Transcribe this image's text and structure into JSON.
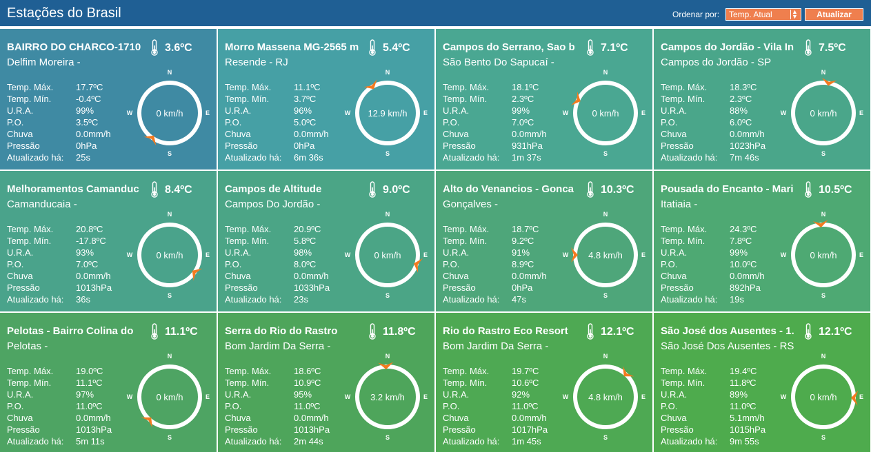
{
  "header": {
    "title": "Estações do Brasil",
    "sort_label": "Ordenar por:",
    "sort_value": "Temp. Atual",
    "refresh_label": "Atualizar"
  },
  "labels": {
    "tmax": "Temp. Máx.",
    "tmin": "Temp. Mín.",
    "ura": "U.R.A.",
    "po": "P.O.",
    "rain": "Chuva",
    "pressure": "Pressão",
    "updated": "Atualizado há:",
    "n": "N",
    "s": "S",
    "e": "E",
    "w": "W"
  },
  "colors": [
    "#3f8aa3",
    "#46a0a5",
    "#4aa792",
    "#4aa68a",
    "#4aa38b",
    "#4ba586",
    "#4ea67a",
    "#4ea973",
    "#4ea463",
    "#4ea55b",
    "#4ea953",
    "#4eab4d"
  ],
  "stations": [
    {
      "name": "BAIRRO DO CHARCO-1710",
      "temp": "3.6ºC",
      "city": "Delfim Moreira -",
      "tmax": "17.7ºC",
      "tmin": "-0.4ºC",
      "ura": "99%",
      "po": "3.5ºC",
      "rain": "0.0mm/h",
      "pressure": "0hPa",
      "updated": "25s",
      "wind": "0 km/h",
      "dir": 215
    },
    {
      "name": "Morro Massena MG-2565 m",
      "temp": "5.4ºC",
      "city": "Resende - RJ",
      "tmax": "11.1ºC",
      "tmin": "3.7ºC",
      "ura": "96%",
      "po": "5.0ºC",
      "rain": "0.0mm/h",
      "pressure": "0hPa",
      "updated": "6m 36s",
      "wind": "12.9 km/h",
      "dir": 330
    },
    {
      "name": "Campos do Serrano, Sao b",
      "temp": "7.1ºC",
      "city": "São Bento Do Sapucaí -",
      "tmax": "18.1ºC",
      "tmin": "2.3ºC",
      "ura": "99%",
      "po": "7.0ºC",
      "rain": "0.0mm/h",
      "pressure": "931hPa",
      "updated": "1m 37s",
      "wind": "0 km/h",
      "dir": 295
    },
    {
      "name": "Campos do Jordão - Vila In",
      "temp": "7.5ºC",
      "city": "Campos do Jordão - SP",
      "tmax": "18.3ºC",
      "tmin": "2.3ºC",
      "ura": "88%",
      "po": "6.0ºC",
      "rain": "0.0mm/h",
      "pressure": "1023hPa",
      "updated": "7m 46s",
      "wind": "0 km/h",
      "dir": 10
    },
    {
      "name": "Melhoramentos Camanduc",
      "temp": "8.4ºC",
      "city": "Camanducaia -",
      "tmax": "20.8ºC",
      "tmin": "-17.8ºC",
      "ura": "93%",
      "po": "7.0ºC",
      "rain": "0.0mm/h",
      "pressure": "1013hPa",
      "updated": "36s",
      "wind": "0 km/h",
      "dir": 125
    },
    {
      "name": "Campos de Altitude",
      "temp": "9.0ºC",
      "city": "Campos Do Jordão -",
      "tmax": "20.9ºC",
      "tmin": "5.8ºC",
      "ura": "98%",
      "po": "8.0ºC",
      "rain": "0.0mm/h",
      "pressure": "1033hPa",
      "updated": "23s",
      "wind": "0 km/h",
      "dir": 108
    },
    {
      "name": "Alto do Venancios - Gonca",
      "temp": "10.3ºC",
      "city": "Gonçalves -",
      "tmax": "18.7ºC",
      "tmin": "9.2ºC",
      "ura": "91%",
      "po": "8.9ºC",
      "rain": "0.0mm/h",
      "pressure": "0hPa",
      "updated": "47s",
      "wind": "4.8 km/h",
      "dir": 270
    },
    {
      "name": "Pousada do Encanto - Mari",
      "temp": "10.5ºC",
      "city": "Itatiaia -",
      "tmax": "24.3ºC",
      "tmin": "7.8ºC",
      "ura": "99%",
      "po": "10.0ºC",
      "rain": "0.0mm/h",
      "pressure": "892hPa",
      "updated": "19s",
      "wind": "0 km/h",
      "dir": 355
    },
    {
      "name": "Pelotas - Bairro Colina do",
      "temp": "11.1ºC",
      "city": "Pelotas -",
      "tmax": "19.0ºC",
      "tmin": "11.1ºC",
      "ura": "97%",
      "po": "11.0ºC",
      "rain": "0.0mm/h",
      "pressure": "1013hPa",
      "updated": "5m 11s",
      "wind": "0 km/h",
      "dir": 222
    },
    {
      "name": "Serra do Rio do Rastro",
      "temp": "11.8ºC",
      "city": "Bom Jardim Da Serra -",
      "tmax": "18.6ºC",
      "tmin": "10.9ºC",
      "ura": "95%",
      "po": "11.0ºC",
      "rain": "0.0mm/h",
      "pressure": "1013hPa",
      "updated": "2m 44s",
      "wind": "3.2 km/h",
      "dir": 357
    },
    {
      "name": "Rio do Rastro Eco Resort",
      "temp": "12.1ºC",
      "city": "Bom Jardim Da Serra -",
      "tmax": "19.7ºC",
      "tmin": "10.6ºC",
      "ura": "92%",
      "po": "11.0ºC",
      "rain": "0.0mm/h",
      "pressure": "1017hPa",
      "updated": "1m 45s",
      "wind": "4.8 km/h",
      "dir": 42
    },
    {
      "name": "São José dos Ausentes - 1.",
      "temp": "12.1ºC",
      "city": "São José Dos Ausentes - RS",
      "tmax": "19.4ºC",
      "tmin": "11.8ºC",
      "ura": "89%",
      "po": "11.0ºC",
      "rain": "5.1mm/h",
      "pressure": "1015hPa",
      "updated": "9m 55s",
      "wind": "0 km/h",
      "dir": 92
    }
  ]
}
